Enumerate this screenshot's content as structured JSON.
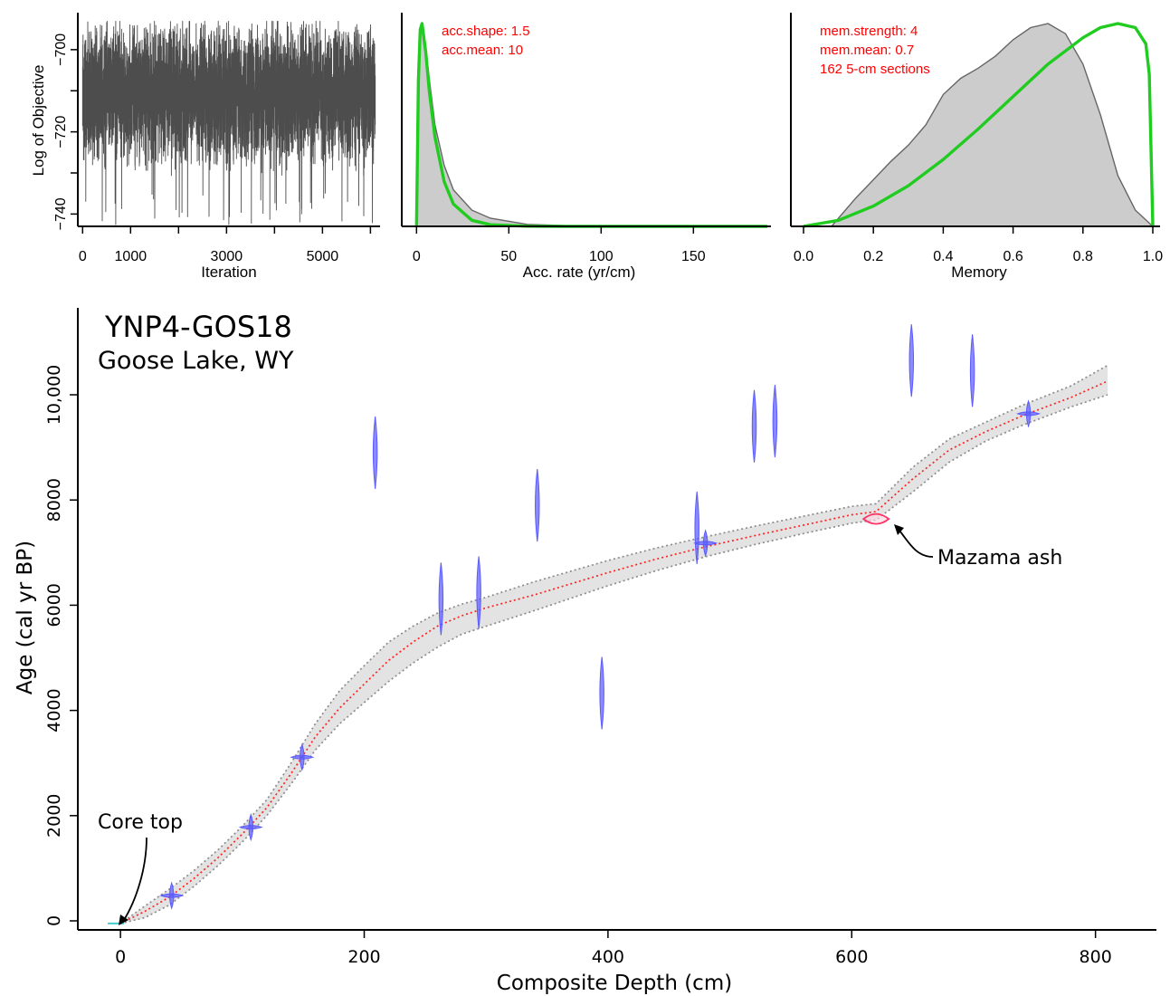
{
  "chart_data": [
    {
      "type": "line",
      "xlabel": "Iteration",
      "ylabel": "Log of Objective",
      "xticks": [
        0,
        1000,
        3000,
        5000
      ],
      "xlim": [
        -100,
        6200
      ],
      "yticks": [
        -700,
        -720,
        -740
      ],
      "ylim": [
        -743,
        -691
      ],
      "series": [
        {
          "values_summary": {
            "n_iterations": 6100,
            "center": -710,
            "upper_envelope": -693,
            "lower_envelope": -735,
            "min": -743
          }
        }
      ]
    },
    {
      "type": "area",
      "xlabel": "Acc. rate (yr/cm)",
      "xticks": [
        0,
        50,
        100,
        150
      ],
      "xlim": [
        -8,
        192
      ],
      "annotations": [
        "acc.shape:  1.5",
        "acc.mean:  10"
      ],
      "series": [
        {
          "kind": "posterior",
          "x": [
            0,
            1,
            2,
            3,
            5,
            7,
            10,
            15,
            20,
            30,
            40,
            60,
            80,
            120,
            190
          ],
          "density": [
            0,
            0.6,
            0.93,
            1.0,
            0.88,
            0.72,
            0.5,
            0.3,
            0.18,
            0.08,
            0.04,
            0.01,
            0.004,
            0.001,
            0
          ]
        },
        {
          "kind": "prior",
          "x": [
            0,
            1,
            2,
            3,
            5,
            7,
            10,
            15,
            20,
            30,
            40,
            60,
            80,
            120,
            190
          ],
          "density": [
            0,
            0.72,
            0.97,
            1.0,
            0.86,
            0.66,
            0.44,
            0.22,
            0.11,
            0.03,
            0.008,
            0.001,
            0,
            0,
            0
          ]
        }
      ]
    },
    {
      "type": "area",
      "xlabel": "Memory",
      "xticks": [
        "0.0",
        "0.2",
        "0.4",
        "0.6",
        "0.8",
        "1.0"
      ],
      "xlim": [
        0,
        1
      ],
      "annotations": [
        "mem.strength: 4",
        "mem.mean: 0.7",
        "162 5-cm sections"
      ],
      "series": [
        {
          "kind": "posterior",
          "x": [
            0.08,
            0.1,
            0.15,
            0.2,
            0.25,
            0.3,
            0.35,
            0.4,
            0.45,
            0.5,
            0.55,
            0.6,
            0.65,
            0.7,
            0.75,
            0.8,
            0.85,
            0.9,
            0.95,
            1.0
          ],
          "density": [
            0,
            0.04,
            0.14,
            0.23,
            0.32,
            0.4,
            0.5,
            0.65,
            0.73,
            0.78,
            0.84,
            0.92,
            0.98,
            1.0,
            0.95,
            0.8,
            0.55,
            0.25,
            0.08,
            0
          ]
        },
        {
          "kind": "prior",
          "x": [
            0,
            0.1,
            0.2,
            0.3,
            0.4,
            0.5,
            0.6,
            0.7,
            0.8,
            0.85,
            0.9,
            0.95,
            0.98,
            0.99,
            1.0
          ],
          "density": [
            0,
            0.03,
            0.1,
            0.2,
            0.33,
            0.48,
            0.64,
            0.8,
            0.93,
            0.98,
            1.0,
            0.98,
            0.9,
            0.75,
            0
          ]
        }
      ]
    },
    {
      "type": "scatter",
      "title": "YNP4-GOS18",
      "subtitle": "Goose Lake, WY",
      "xlabel": "Composite Depth (cm)",
      "ylabel": "Age (cal yr BP)",
      "xticks": [
        0,
        200,
        400,
        600,
        800
      ],
      "xlim": [
        -35,
        850
      ],
      "yticks": [
        "0",
        "2000",
        "4000",
        "6000",
        "8000",
        "10,000"
      ],
      "ylim": [
        -200,
        11600
      ],
      "annotations": [
        "Core top",
        "Mazama ash"
      ],
      "series": [
        {
          "name": "age-depth model",
          "x": [
            0,
            20,
            40,
            60,
            80,
            100,
            120,
            140,
            160,
            180,
            200,
            220,
            240,
            260,
            280,
            300,
            340,
            400,
            440,
            480,
            520,
            560,
            600,
            620,
            650,
            680,
            710,
            740,
            780,
            810
          ],
          "y": [
            -50,
            180,
            450,
            800,
            1200,
            1650,
            2150,
            2800,
            3500,
            4050,
            4500,
            4950,
            5300,
            5600,
            5800,
            5950,
            6200,
            6620,
            6880,
            7110,
            7320,
            7520,
            7720,
            7780,
            8400,
            8950,
            9300,
            9600,
            9950,
            10260
          ],
          "y_lower": [
            -50,
            60,
            300,
            650,
            1050,
            1500,
            2000,
            2600,
            3250,
            3750,
            4150,
            4550,
            4900,
            5200,
            5450,
            5600,
            5900,
            6370,
            6660,
            6920,
            7150,
            7360,
            7560,
            7620,
            8150,
            8720,
            9120,
            9420,
            9770,
            10000
          ],
          "y_upper": [
            -50,
            280,
            600,
            950,
            1350,
            1800,
            2300,
            3000,
            3750,
            4380,
            4850,
            5300,
            5600,
            5850,
            6020,
            6150,
            6450,
            6850,
            7090,
            7300,
            7500,
            7690,
            7880,
            7930,
            8620,
            9160,
            9480,
            9800,
            10170,
            10560
          ]
        },
        {
          "name": "dates",
          "points": [
            {
              "depth": -3,
              "age": -50,
              "kind": "core top"
            },
            {
              "depth": 42,
              "age": 480,
              "kind": "radiocarbon"
            },
            {
              "depth": 107,
              "age": 1780,
              "kind": "radiocarbon"
            },
            {
              "depth": 149,
              "age": 3110,
              "kind": "radiocarbon"
            },
            {
              "depth": 209,
              "age": 8900,
              "kind": "radiocarbon"
            },
            {
              "depth": 263,
              "age": 6120,
              "kind": "radiocarbon"
            },
            {
              "depth": 294,
              "age": 6240,
              "kind": "radiocarbon"
            },
            {
              "depth": 342,
              "age": 7900,
              "kind": "radiocarbon"
            },
            {
              "depth": 395,
              "age": 4330,
              "kind": "radiocarbon"
            },
            {
              "depth": 473,
              "age": 7470,
              "kind": "radiocarbon"
            },
            {
              "depth": 480,
              "age": 7180,
              "kind": "radiocarbon"
            },
            {
              "depth": 520,
              "age": 9400,
              "kind": "radiocarbon"
            },
            {
              "depth": 537,
              "age": 9500,
              "kind": "radiocarbon"
            },
            {
              "depth": 620,
              "age": 7640,
              "kind": "tephra"
            },
            {
              "depth": 649,
              "age": 10650,
              "kind": "radiocarbon"
            },
            {
              "depth": 699,
              "age": 10460,
              "kind": "radiocarbon"
            },
            {
              "depth": 745,
              "age": 9640,
              "kind": "radiocarbon"
            }
          ]
        }
      ]
    }
  ],
  "colors": {
    "trace": "#4d4d4d",
    "posterior_fill": "#cccccc",
    "posterior_line": "#666666",
    "prior": "#1fcc1f",
    "annotation_text": "#ff0000",
    "model_mean": "#ff2222",
    "model_bounds": "#8c8c8c",
    "radiocarbon": "#5a5aff",
    "tephra": "#ff3366",
    "core_top": "#44cccc"
  }
}
